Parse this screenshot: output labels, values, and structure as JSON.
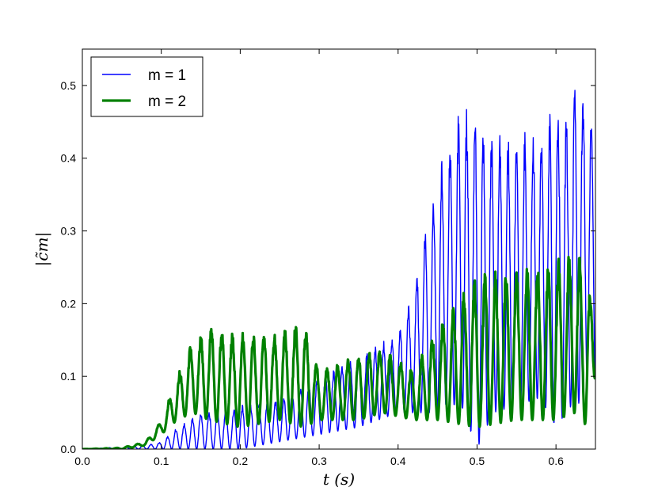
{
  "chart_data": {
    "type": "line",
    "xlabel": "t (s)",
    "ylabel": "|c̃m|",
    "xlim": [
      0.0,
      0.65
    ],
    "ylim": [
      0.0,
      0.55
    ],
    "x_ticks": [
      "0.0",
      "0.1",
      "0.2",
      "0.3",
      "0.4",
      "0.5",
      "0.6"
    ],
    "y_ticks": [
      "0.0",
      "0.1",
      "0.2",
      "0.3",
      "0.4",
      "0.5"
    ],
    "grid": false,
    "legend_position": "top-left",
    "series": [
      {
        "name": "m = 1",
        "color": "#0000ff",
        "line_width": "thin",
        "envelope": {
          "t": [
            0.0,
            0.05,
            0.08,
            0.1,
            0.12,
            0.15,
            0.2,
            0.25,
            0.3,
            0.35,
            0.4,
            0.42,
            0.44,
            0.46,
            0.48,
            0.5,
            0.52,
            0.55,
            0.58,
            0.6,
            0.62,
            0.625,
            0.64,
            0.65
          ],
          "max": [
            0.0,
            0.003,
            0.005,
            0.01,
            0.03,
            0.05,
            0.06,
            0.07,
            0.1,
            0.13,
            0.16,
            0.22,
            0.34,
            0.42,
            0.47,
            0.47,
            0.44,
            0.43,
            0.45,
            0.47,
            0.48,
            0.53,
            0.49,
            0.43
          ],
          "min": [
            0.0,
            0.0,
            0.0,
            0.0,
            0.0,
            0.0,
            0.0,
            0.01,
            0.02,
            0.03,
            0.05,
            0.05,
            0.05,
            0.06,
            0.06,
            0.0,
            0.05,
            0.06,
            0.07,
            0.03,
            0.06,
            0.05,
            0.1,
            0.1
          ]
        }
      },
      {
        "name": "m = 2",
        "color": "#008000",
        "line_width": "thick",
        "envelope": {
          "t": [
            0.0,
            0.05,
            0.08,
            0.1,
            0.12,
            0.14,
            0.16,
            0.2,
            0.25,
            0.28,
            0.3,
            0.35,
            0.38,
            0.42,
            0.45,
            0.5,
            0.55,
            0.6,
            0.625,
            0.64,
            0.65
          ],
          "max": [
            0.0,
            0.002,
            0.01,
            0.04,
            0.1,
            0.15,
            0.17,
            0.16,
            0.16,
            0.18,
            0.11,
            0.13,
            0.14,
            0.11,
            0.17,
            0.24,
            0.25,
            0.26,
            0.28,
            0.24,
            0.18
          ],
          "min": [
            0.0,
            0.0,
            0.005,
            0.02,
            0.04,
            0.05,
            0.04,
            0.03,
            0.04,
            0.03,
            0.04,
            0.04,
            0.05,
            0.04,
            0.04,
            0.03,
            0.04,
            0.04,
            0.05,
            0.03,
            0.1
          ]
        }
      }
    ]
  }
}
